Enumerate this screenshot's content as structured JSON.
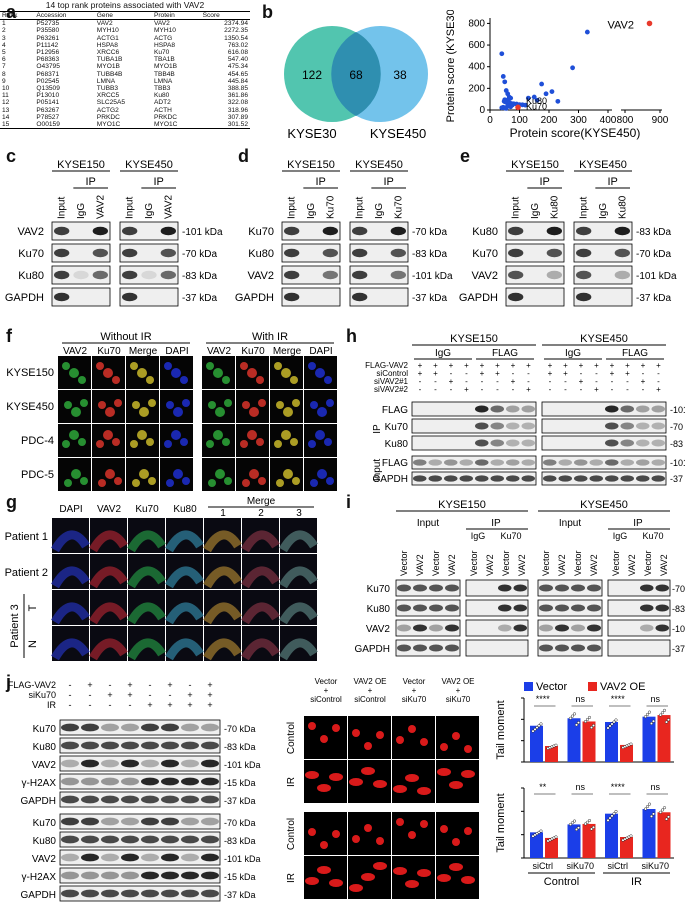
{
  "panels": {
    "a": "a",
    "b": "b",
    "c": "c",
    "d": "d",
    "e": "e",
    "f": "f",
    "g": "g",
    "h": "h",
    "i": "i",
    "j": "j"
  },
  "table_a": {
    "title": "14 top rank proteins associated with VAV2",
    "headers": [
      "Rank",
      "Accession",
      "Gene",
      "Protein",
      "Score"
    ],
    "rows": [
      [
        "1",
        "P52735",
        "VAV2",
        "VAV2",
        "2374.94"
      ],
      [
        "2",
        "P35580",
        "MYH10",
        "MYH10",
        "2272.35"
      ],
      [
        "3",
        "P63261",
        "ACTG1",
        "ACTG",
        "1350.54"
      ],
      [
        "4",
        "P11142",
        "HSPA8",
        "HSPA8",
        "763.02"
      ],
      [
        "5",
        "P12956",
        "XRCC6",
        "Ku70",
        "616.08"
      ],
      [
        "6",
        "P68363",
        "TUBA1B",
        "TBA1B",
        "547.40"
      ],
      [
        "7",
        "O43795",
        "MYO1B",
        "MYO1B",
        "475.34"
      ],
      [
        "8",
        "P68371",
        "TUBB4B",
        "TBB4B",
        "454.65"
      ],
      [
        "9",
        "P02545",
        "LMNA",
        "LMNA",
        "445.84"
      ],
      [
        "10",
        "Q13509",
        "TUBB3",
        "TBB3",
        "388.85"
      ],
      [
        "11",
        "P13010",
        "XRCC5",
        "Ku80",
        "361.86"
      ],
      [
        "12",
        "P05141",
        "SLC25A5",
        "ADT2",
        "322.08"
      ],
      [
        "13",
        "P63267",
        "ACTG2",
        "ACTH",
        "318.96"
      ],
      [
        "14",
        "P78527",
        "PRKDC",
        "PRKDC",
        "307.89"
      ],
      [
        "15",
        "O00159",
        "MYO1C",
        "MYO1C",
        "301.52"
      ]
    ]
  },
  "venn": {
    "left_only": "122",
    "overlap": "68",
    "right_only": "38",
    "left_label": "KYSE30",
    "right_label": "KYSE450",
    "left_color": "#3fbfa6",
    "right_color": "#5ab8e8"
  },
  "scatter": {
    "xlabel": "Protein score(KYSE450)",
    "ylabel": "Protein score (KYSE30)",
    "xticks": [
      "0",
      "100",
      "200",
      "300",
      "400",
      "800",
      "900"
    ],
    "yticks": [
      "0",
      "200",
      "400",
      "600",
      "800"
    ],
    "labels": {
      "vav2": "VAV2",
      "ku80": "Ku80",
      "ku70": "Ku70"
    },
    "highlight_color": "#e8392b",
    "point_color": "#1f4fd8"
  },
  "chart_data": [
    {
      "type": "scatter",
      "xlabel": "Protein score(KYSE450)",
      "ylabel": "Protein score (KYSE30)",
      "xlim": [
        0,
        900
      ],
      "ylim": [
        0,
        850
      ],
      "series": [
        {
          "name": "VAV2",
          "x": [
            870
          ],
          "y": [
            800
          ]
        },
        {
          "name": "Ku80",
          "x": [
            75
          ],
          "y": [
            50
          ]
        },
        {
          "name": "Ku70",
          "x": [
            95
          ],
          "y": [
            25
          ]
        }
      ],
      "others": {
        "x": [
          40,
          45,
          50,
          55,
          60,
          65,
          70,
          50,
          55,
          62,
          48,
          52,
          58,
          66,
          72,
          80,
          90,
          100,
          110,
          120,
          130,
          150,
          160,
          175,
          190,
          210,
          230,
          280,
          330,
          60,
          70,
          40,
          45,
          50,
          55
        ],
        "y": [
          520,
          310,
          260,
          180,
          150,
          120,
          110,
          95,
          90,
          85,
          80,
          75,
          70,
          65,
          60,
          58,
          55,
          50,
          48,
          45,
          110,
          120,
          90,
          240,
          150,
          170,
          80,
          390,
          720,
          40,
          30,
          20,
          25,
          18,
          15
        ]
      }
    },
    {
      "type": "bar",
      "title": "",
      "ylabel": "Tail moment",
      "categories": [
        "siControl",
        "siKu70",
        "siControl",
        "siKu70"
      ],
      "groups": [
        "Control",
        "IR"
      ],
      "series": [
        {
          "name": "Vector",
          "values": [
            68,
            82,
            75,
            85
          ]
        },
        {
          "name": "VAV2 OE",
          "values": [
            30,
            76,
            32,
            88
          ]
        }
      ],
      "sig": [
        "****",
        "ns",
        "****",
        "ns"
      ],
      "ylim": [
        0,
        120
      ],
      "yticks": [
        0,
        40,
        80,
        120
      ]
    },
    {
      "type": "bar",
      "title": "",
      "ylabel": "Tail moment",
      "categories": [
        "siCtrl",
        "siKu70",
        "siCtrl",
        "siKu70"
      ],
      "groups": [
        "Control",
        "IR"
      ],
      "series": [
        {
          "name": "Vector",
          "values": [
            55,
            72,
            95,
            105
          ]
        },
        {
          "name": "VAV2 OE",
          "values": [
            43,
            73,
            45,
            98
          ]
        }
      ],
      "sig": [
        "**",
        "ns",
        "****",
        "ns"
      ],
      "ylim": [
        0,
        150
      ],
      "yticks": [
        0,
        50,
        100,
        150
      ]
    }
  ],
  "blot_c": {
    "lines": [
      "KYSE150",
      "KYSE450"
    ],
    "ip": "IP",
    "lanes": [
      "Input",
      "IgG",
      "VAV2"
    ],
    "rows": [
      "VAV2",
      "Ku70",
      "Ku80",
      "GAPDH"
    ],
    "kda": [
      "101 kDa",
      "70 kDa",
      "83 kDa",
      "37 kDa"
    ]
  },
  "blot_d": {
    "lines": [
      "KYSE150",
      "KYSE450"
    ],
    "ip": "IP",
    "lanes": [
      "Input",
      "IgG",
      "Ku70"
    ],
    "rows": [
      "Ku70",
      "Ku80",
      "VAV2",
      "GAPDH"
    ],
    "kda": [
      "70 kDa",
      "83 kDa",
      "101 kDa",
      "37 kDa"
    ]
  },
  "blot_e": {
    "lines": [
      "KYSE150",
      "KYSE450"
    ],
    "ip": "IP",
    "lanes": [
      "Input",
      "IgG",
      "Ku80"
    ],
    "rows": [
      "Ku80",
      "Ku70",
      "VAV2",
      "GAPDH"
    ],
    "kda": [
      "83 kDa",
      "70 kDa",
      "101 kDa",
      "37 kDa"
    ]
  },
  "panel_f": {
    "groups": [
      "Without IR",
      "With IR"
    ],
    "cols": [
      "VAV2",
      "Ku70",
      "Merge",
      "DAPI"
    ],
    "rows": [
      "KYSE150",
      "KYSE450",
      "PDC-4",
      "PDC-5"
    ]
  },
  "panel_g": {
    "cols": [
      "DAPI",
      "VAV2",
      "Ku70",
      "Ku80"
    ],
    "merge": "Merge",
    "merge_cols": [
      "1",
      "2",
      "3"
    ],
    "rows": [
      "Patient 1",
      "Patient 2"
    ],
    "patient3": "Patient 3",
    "p3rows": [
      "T",
      "N"
    ]
  },
  "panel_h": {
    "lines": [
      "KYSE150",
      "KYSE450"
    ],
    "ab": [
      "IgG",
      "FLAG"
    ],
    "conds": [
      "FLAG-VAV2",
      "siControl",
      "siVAV2#1",
      "siVAV2#2"
    ],
    "signs": {
      "FLAG-VAV2": [
        "+",
        "+",
        "+",
        "+"
      ],
      "siControl": [
        "+",
        "+",
        "-",
        "-"
      ],
      "siVAV2#1": [
        "-",
        "-",
        "+",
        "-"
      ],
      "siVAV2#2": [
        "-",
        "-",
        "-",
        "+"
      ]
    },
    "ip": "IP",
    "input": "Input",
    "rows_ip": [
      "FLAG",
      "Ku70",
      "Ku80"
    ],
    "rows_in": [
      "FLAG",
      "GAPDH"
    ],
    "kda": [
      "101 kDa",
      "70 kDa",
      "83 kDa",
      "101 kDa",
      "37 kDa"
    ]
  },
  "panel_i": {
    "lines": [
      "KYSE150",
      "KYSE450"
    ],
    "input": "Input",
    "ip": "IP",
    "ip_lanes": [
      "IgG",
      "Ku70"
    ],
    "lanes": [
      "Vector",
      "VAV2",
      "Vector",
      "VAV2"
    ],
    "ip_sub": [
      "Vector",
      "VAV2",
      "Vector",
      "VAV2"
    ],
    "rows": [
      "Ku70",
      "Ku80",
      "VAV2",
      "GAPDH"
    ],
    "kda": [
      "70 kDa",
      "83 kDa",
      "101 kDa",
      "37 kDa"
    ]
  },
  "panel_j": {
    "conds": [
      "FLAG-VAV2",
      "siKu70",
      "IR"
    ],
    "signs": {
      "FLAG-VAV2": [
        "-",
        "+",
        "-",
        "+",
        "-",
        "+",
        "-",
        "+"
      ],
      "siKu70": [
        "-",
        "-",
        "+",
        "+",
        "-",
        "-",
        "+",
        "+"
      ],
      "IR": [
        "-",
        "-",
        "-",
        "-",
        "+",
        "+",
        "+",
        "+"
      ]
    },
    "rows": [
      "Ku70",
      "Ku80",
      "VAV2",
      "γ-H2AX",
      "GAPDH"
    ],
    "kda": [
      "70 kDa",
      "83 kDa",
      "101 kDa",
      "15 kDa",
      "37 kDa"
    ],
    "comet_cols": [
      "Vector\n+\nsiControl",
      "VAV2 OE\n+\nsiControl",
      "Vector\n+\nsiKu70",
      "VAV2 OE\n+\nsiKu70"
    ],
    "comet_rows": [
      "Control",
      "IR",
      "Control",
      "IR"
    ],
    "legend": [
      "Vector",
      "VAV2 OE"
    ],
    "ylabel": "Tail moment",
    "bar_groups": [
      "Control",
      "IR"
    ],
    "bar_colors": [
      "#1b3ee8",
      "#e8261f"
    ]
  }
}
